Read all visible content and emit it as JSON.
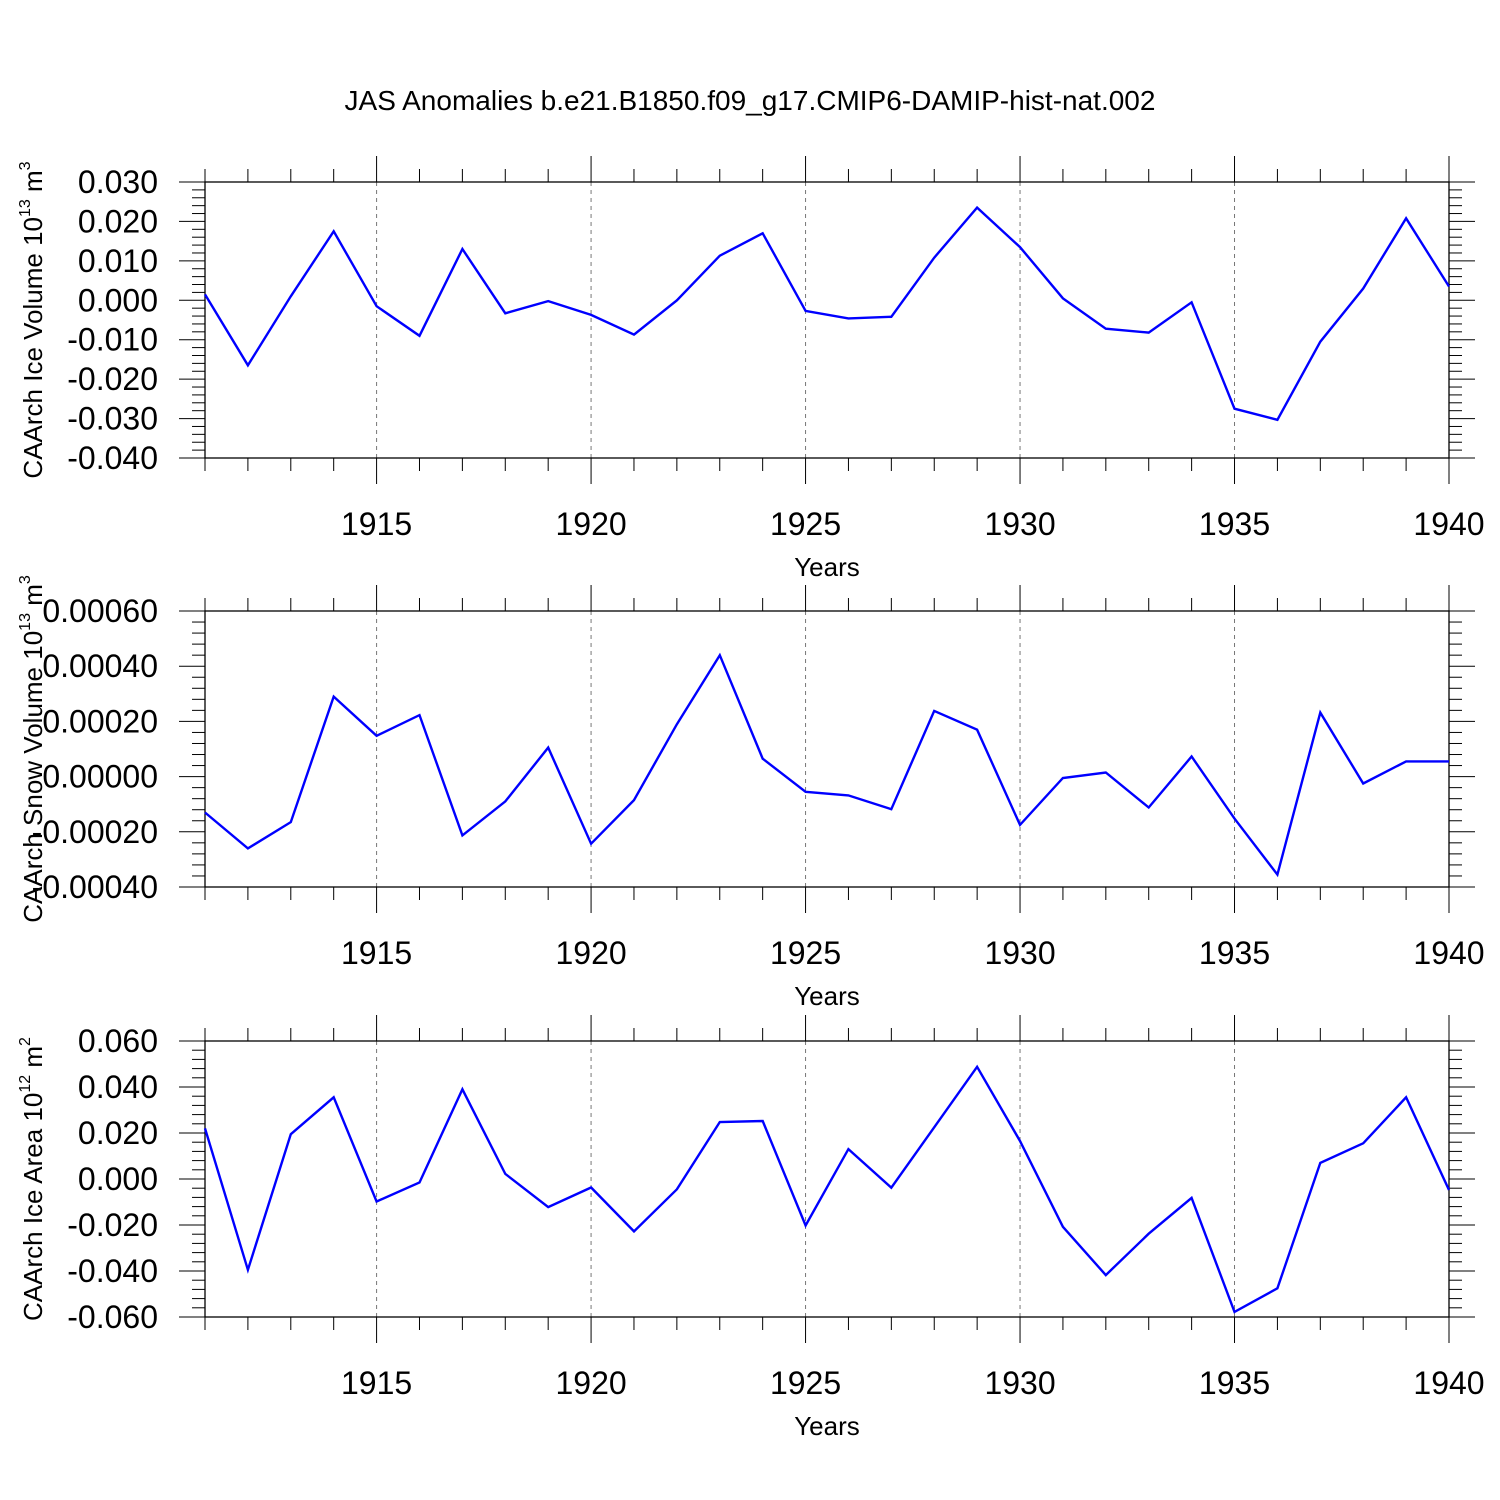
{
  "title": "JAS Anomalies b.e21.B1850.f09_g17.CMIP6-DAMIP-hist-nat.002",
  "line_color": "#0000ff",
  "chart_data": [
    {
      "type": "line",
      "xlabel": "Years",
      "ylabel_text": "CAArch Ice Volume 10",
      "ylabel_exp": "13",
      "ylabel_unit": " m",
      "ylabel_unit_exp": "3",
      "xlim": [
        1911,
        1940
      ],
      "ylim": [
        -0.04,
        0.03
      ],
      "yticks": [
        -0.04,
        -0.03,
        -0.02,
        -0.01,
        0.0,
        0.01,
        0.02,
        0.03
      ],
      "ytick_labels": [
        "-0.040",
        "-0.030",
        "-0.020",
        "-0.010",
        "0.000",
        "0.010",
        "0.020",
        "0.030"
      ],
      "xticks": [
        1915,
        1920,
        1925,
        1930,
        1935,
        1940
      ],
      "xtick_labels": [
        "1915",
        "1920",
        "1925",
        "1930",
        "1935",
        "1940"
      ],
      "grid": "vertical dashed at major x ticks",
      "x": [
        1911,
        1912,
        1913,
        1914,
        1915,
        1916,
        1917,
        1918,
        1919,
        1920,
        1921,
        1922,
        1923,
        1924,
        1925,
        1926,
        1927,
        1928,
        1929,
        1930,
        1931,
        1932,
        1933,
        1934,
        1935,
        1936,
        1937,
        1938,
        1939,
        1940
      ],
      "series": [
        {
          "values": [
            0.0015,
            -0.0165,
            0.001,
            0.0175,
            -0.0015,
            -0.009,
            0.013,
            -0.0033,
            -0.0002,
            -0.0037,
            -0.0087,
            0.0,
            0.0113,
            0.017,
            -0.0027,
            -0.0046,
            -0.0042,
            0.0108,
            0.0235,
            0.0135,
            0.0005,
            -0.0072,
            -0.0082,
            -0.0005,
            -0.0275,
            -0.0303,
            -0.0105,
            0.003,
            0.0208,
            0.0035
          ]
        }
      ]
    },
    {
      "type": "line",
      "xlabel": "Years",
      "ylabel_text": "CAArch Snow Volume 10",
      "ylabel_exp": "13",
      "ylabel_unit": " m",
      "ylabel_unit_exp": "3",
      "xlim": [
        1911,
        1940
      ],
      "ylim": [
        -0.0004,
        0.0006
      ],
      "yticks": [
        -0.0004,
        -0.0002,
        0.0,
        0.0002,
        0.0004,
        0.0006
      ],
      "ytick_labels": [
        "-0.00040",
        "-0.00020",
        "0.00000",
        "0.00020",
        "0.00040",
        "0.00060"
      ],
      "xticks": [
        1915,
        1920,
        1925,
        1930,
        1935,
        1940
      ],
      "xtick_labels": [
        "1915",
        "1920",
        "1925",
        "1930",
        "1935",
        "1940"
      ],
      "grid": "vertical dashed at major x ticks",
      "x": [
        1911,
        1912,
        1913,
        1914,
        1915,
        1916,
        1917,
        1918,
        1919,
        1920,
        1921,
        1922,
        1923,
        1924,
        1925,
        1926,
        1927,
        1928,
        1929,
        1930,
        1931,
        1932,
        1933,
        1934,
        1935,
        1936,
        1937,
        1938,
        1939,
        1940
      ],
      "series": [
        {
          "values": [
            -0.00013,
            -0.00026,
            -0.000165,
            0.00029,
            0.000148,
            0.000223,
            -0.000213,
            -9e-05,
            0.000105,
            -0.000243,
            -8.5e-05,
            0.00019,
            0.00044,
            6.5e-05,
            -5.5e-05,
            -6.8e-05,
            -0.000118,
            0.000238,
            0.00017,
            -0.000175,
            -5e-06,
            1.5e-05,
            -0.000112,
            7.3e-05,
            -0.000152,
            -0.000355,
            0.000232,
            -2.5e-05,
            5.5e-05,
            5.5e-05
          ]
        }
      ]
    },
    {
      "type": "line",
      "xlabel": "Years",
      "ylabel_text": "CAArch Ice Area 10",
      "ylabel_exp": "12",
      "ylabel_unit": " m",
      "ylabel_unit_exp": "2",
      "xlim": [
        1911,
        1940
      ],
      "ylim": [
        -0.06,
        0.06
      ],
      "yticks": [
        -0.06,
        -0.04,
        -0.02,
        0.0,
        0.02,
        0.04,
        0.06
      ],
      "ytick_labels": [
        "-0.060",
        "-0.040",
        "-0.020",
        "0.000",
        "0.020",
        "0.040",
        "0.060"
      ],
      "xticks": [
        1915,
        1920,
        1925,
        1930,
        1935,
        1940
      ],
      "xtick_labels": [
        "1915",
        "1920",
        "1925",
        "1930",
        "1935",
        "1940"
      ],
      "grid": "vertical dashed at major x ticks",
      "x": [
        1911,
        1912,
        1913,
        1914,
        1915,
        1916,
        1917,
        1918,
        1919,
        1920,
        1921,
        1922,
        1923,
        1924,
        1925,
        1926,
        1927,
        1928,
        1929,
        1930,
        1931,
        1932,
        1933,
        1934,
        1935,
        1936,
        1937,
        1938,
        1939,
        1940
      ],
      "series": [
        {
          "values": [
            0.022,
            -0.0395,
            0.0195,
            0.0355,
            -0.0098,
            -0.0015,
            0.039,
            0.0022,
            -0.0122,
            -0.0037,
            -0.0228,
            -0.0045,
            0.0248,
            0.0252,
            -0.0202,
            0.013,
            -0.0038,
            0.0225,
            0.0488,
            0.0165,
            -0.0208,
            -0.0418,
            -0.0238,
            -0.0082,
            -0.0578,
            -0.0475,
            0.007,
            0.0155,
            0.0355,
            -0.0048
          ]
        }
      ]
    }
  ]
}
